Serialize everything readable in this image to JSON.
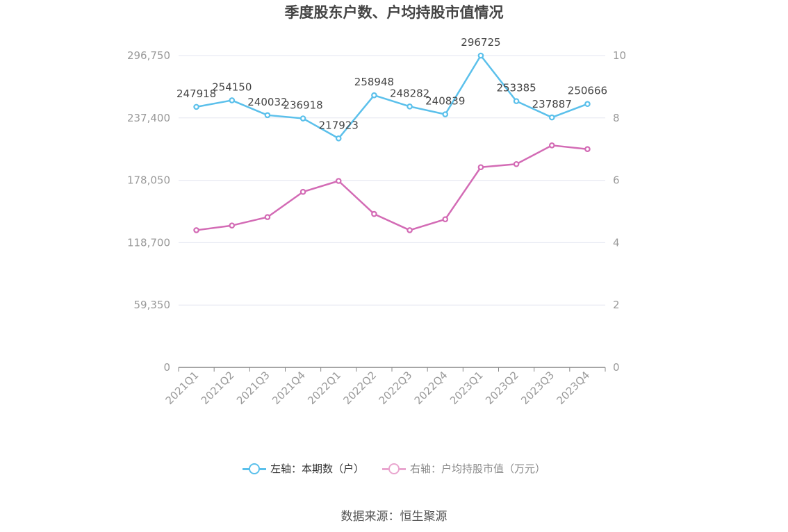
{
  "title": "季度股东户数、户均持股市值情况",
  "source": "数据来源：恒生聚源",
  "legend": [
    {
      "label": "左轴：本期数（户）",
      "color": "#5bc0eb",
      "active": true
    },
    {
      "label": "右轴：户均持股市值（万元）",
      "color": "#e9a6cf",
      "active": false
    }
  ],
  "chart_data": {
    "type": "line",
    "title": "季度股东户数、户均持股市值情况",
    "categories": [
      "2021Q1",
      "2021Q2",
      "2021Q3",
      "2021Q4",
      "2022Q1",
      "2022Q2",
      "2022Q3",
      "2022Q4",
      "2023Q1",
      "2023Q2",
      "2023Q3",
      "2023Q4"
    ],
    "left_axis": {
      "min": 0,
      "max": 296750,
      "ticks": [
        0,
        59350,
        118700,
        178050,
        237400,
        296750
      ],
      "tick_labels": [
        "0",
        "59,350",
        "118,700",
        "178,050",
        "237,400",
        "296,750"
      ]
    },
    "right_axis": {
      "min": 0,
      "max": 10,
      "ticks": [
        0,
        2,
        4,
        6,
        8,
        10
      ],
      "tick_labels": [
        "0",
        "2",
        "4",
        "6",
        "8",
        "10"
      ]
    },
    "series": [
      {
        "name": "左轴：本期数（户）",
        "axis": "left",
        "color": "#5bc0eb",
        "show_labels": true,
        "values": [
          247918,
          254150,
          240032,
          236918,
          217923,
          258948,
          248282,
          240839,
          296725,
          253385,
          237887,
          250666
        ],
        "labels": [
          "247918",
          "254150",
          "240032",
          "236918",
          "217923",
          "258948",
          "248282",
          "240839",
          "296725",
          "253385",
          "237887",
          "250666"
        ]
      },
      {
        "name": "右轴：户均持股市值（万元）",
        "axis": "right",
        "color": "#d36bb5",
        "show_labels": false,
        "values": [
          4.4,
          4.55,
          4.82,
          5.63,
          5.98,
          4.92,
          4.4,
          4.75,
          6.42,
          6.52,
          7.12,
          7.0
        ]
      }
    ],
    "grid": true
  }
}
